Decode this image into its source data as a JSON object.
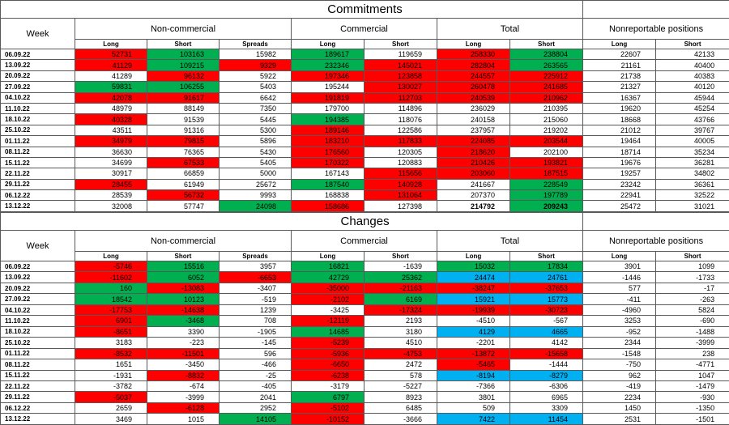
{
  "colors": {
    "red": "#ff0000",
    "green": "#00b050",
    "blue": "#00b0f0",
    "none": "#ffffff"
  },
  "header": {
    "week": "Week",
    "groups": [
      {
        "label": "Non-commercial"
      },
      {
        "label": "Commercial"
      },
      {
        "label": "Total"
      },
      {
        "label": "Nonreportable positions"
      }
    ],
    "sub": [
      "Long",
      "Short",
      "Spreads",
      "Long",
      "Short",
      "Long",
      "Short",
      "Long",
      "Short"
    ]
  },
  "commitments": {
    "title": "Commitments",
    "rows": [
      {
        "week": "06.09.22",
        "cells": [
          [
            52731,
            "red"
          ],
          [
            103163,
            "green"
          ],
          [
            15982,
            "none"
          ],
          [
            189617,
            "green"
          ],
          [
            119659,
            "none"
          ],
          [
            258330,
            "red"
          ],
          [
            238804,
            "green"
          ],
          [
            22607,
            "none"
          ],
          [
            42133,
            "none"
          ]
        ]
      },
      {
        "week": "13.09.22",
        "cells": [
          [
            41129,
            "red"
          ],
          [
            109215,
            "green"
          ],
          [
            9329,
            "red"
          ],
          [
            232346,
            "green"
          ],
          [
            145021,
            "red"
          ],
          [
            282804,
            "red"
          ],
          [
            263565,
            "green"
          ],
          [
            21161,
            "none"
          ],
          [
            40400,
            "none"
          ]
        ]
      },
      {
        "week": "20.09.22",
        "cells": [
          [
            41289,
            "none"
          ],
          [
            96132,
            "red"
          ],
          [
            5922,
            "none"
          ],
          [
            197346,
            "red"
          ],
          [
            123858,
            "red"
          ],
          [
            244557,
            "red"
          ],
          [
            225912,
            "red"
          ],
          [
            21738,
            "none"
          ],
          [
            40383,
            "none"
          ]
        ]
      },
      {
        "week": "27.09.22",
        "cells": [
          [
            59831,
            "green"
          ],
          [
            106255,
            "green"
          ],
          [
            5403,
            "none"
          ],
          [
            195244,
            "none"
          ],
          [
            130027,
            "red"
          ],
          [
            260478,
            "red"
          ],
          [
            241685,
            "red"
          ],
          [
            21327,
            "none"
          ],
          [
            40120,
            "none"
          ]
        ]
      },
      {
        "week": "04.10.22",
        "cells": [
          [
            42078,
            "red"
          ],
          [
            91617,
            "red"
          ],
          [
            6642,
            "none"
          ],
          [
            191819,
            "red"
          ],
          [
            112703,
            "red"
          ],
          [
            240539,
            "red"
          ],
          [
            210962,
            "red"
          ],
          [
            16367,
            "none"
          ],
          [
            45944,
            "none"
          ]
        ]
      },
      {
        "week": "11.10.22",
        "cells": [
          [
            48979,
            "none"
          ],
          [
            88149,
            "none"
          ],
          [
            7350,
            "none"
          ],
          [
            179700,
            "none"
          ],
          [
            114896,
            "none"
          ],
          [
            236029,
            "none"
          ],
          [
            210395,
            "none"
          ],
          [
            19620,
            "none"
          ],
          [
            45254,
            "none"
          ]
        ]
      },
      {
        "week": "18.10.22",
        "cells": [
          [
            40328,
            "red"
          ],
          [
            91539,
            "none"
          ],
          [
            5445,
            "none"
          ],
          [
            194385,
            "green"
          ],
          [
            118076,
            "none"
          ],
          [
            240158,
            "none"
          ],
          [
            215060,
            "none"
          ],
          [
            18668,
            "none"
          ],
          [
            43766,
            "none"
          ]
        ]
      },
      {
        "week": "25.10.22",
        "cells": [
          [
            43511,
            "none"
          ],
          [
            91316,
            "none"
          ],
          [
            5300,
            "none"
          ],
          [
            189146,
            "red"
          ],
          [
            122586,
            "none"
          ],
          [
            237957,
            "none"
          ],
          [
            219202,
            "none"
          ],
          [
            21012,
            "none"
          ],
          [
            39767,
            "none"
          ]
        ]
      },
      {
        "week": "01.11.22",
        "cells": [
          [
            34979,
            "red"
          ],
          [
            79815,
            "red"
          ],
          [
            5896,
            "none"
          ],
          [
            183210,
            "red"
          ],
          [
            117833,
            "red"
          ],
          [
            224085,
            "red"
          ],
          [
            203544,
            "red"
          ],
          [
            19464,
            "none"
          ],
          [
            40005,
            "none"
          ]
        ]
      },
      {
        "week": "08.11.22",
        "cells": [
          [
            36630,
            "none"
          ],
          [
            76365,
            "none"
          ],
          [
            5430,
            "none"
          ],
          [
            176560,
            "red"
          ],
          [
            120305,
            "none"
          ],
          [
            218620,
            "red"
          ],
          [
            202100,
            "none"
          ],
          [
            18714,
            "none"
          ],
          [
            35234,
            "none"
          ]
        ]
      },
      {
        "week": "15.11.22",
        "cells": [
          [
            34699,
            "none"
          ],
          [
            67533,
            "red"
          ],
          [
            5405,
            "none"
          ],
          [
            170322,
            "red"
          ],
          [
            120883,
            "none"
          ],
          [
            210426,
            "red"
          ],
          [
            193821,
            "red"
          ],
          [
            19676,
            "none"
          ],
          [
            36281,
            "none"
          ]
        ]
      },
      {
        "week": "22.11.22",
        "cells": [
          [
            30917,
            "none"
          ],
          [
            66859,
            "none"
          ],
          [
            5000,
            "none"
          ],
          [
            167143,
            "none"
          ],
          [
            115656,
            "red"
          ],
          [
            203060,
            "red"
          ],
          [
            187515,
            "red"
          ],
          [
            19257,
            "none"
          ],
          [
            34802,
            "none"
          ]
        ]
      },
      {
        "week": "29.11.22",
        "cells": [
          [
            28455,
            "red"
          ],
          [
            61949,
            "none"
          ],
          [
            25672,
            "none"
          ],
          [
            187540,
            "green"
          ],
          [
            140928,
            "red"
          ],
          [
            241667,
            "none"
          ],
          [
            228549,
            "green"
          ],
          [
            23242,
            "none"
          ],
          [
            36361,
            "none"
          ]
        ]
      },
      {
        "week": "06.12.22",
        "cells": [
          [
            28539,
            "none"
          ],
          [
            56732,
            "red"
          ],
          [
            9993,
            "none"
          ],
          [
            168838,
            "none"
          ],
          [
            131064,
            "red"
          ],
          [
            207370,
            "none"
          ],
          [
            197789,
            "green"
          ],
          [
            22941,
            "none"
          ],
          [
            32522,
            "none"
          ]
        ]
      },
      {
        "week": "13.12.22",
        "cells": [
          [
            32008,
            "none"
          ],
          [
            57747,
            "none"
          ],
          [
            24098,
            "green"
          ],
          [
            158686,
            "red"
          ],
          [
            127398,
            "none"
          ],
          [
            214792,
            "none",
            true
          ],
          [
            209243,
            "green",
            true
          ],
          [
            25472,
            "none"
          ],
          [
            31021,
            "none"
          ]
        ]
      }
    ]
  },
  "changes": {
    "title": "Changes",
    "rows": [
      {
        "week": "06.09.22",
        "cells": [
          [
            -5746,
            "red"
          ],
          [
            15516,
            "green"
          ],
          [
            3957,
            "none"
          ],
          [
            16821,
            "green"
          ],
          [
            -1639,
            "none"
          ],
          [
            15032,
            "green"
          ],
          [
            17834,
            "green"
          ],
          [
            3901,
            "none"
          ],
          [
            1099,
            "none"
          ]
        ]
      },
      {
        "week": "13.09.22",
        "cells": [
          [
            -11602,
            "red"
          ],
          [
            6052,
            "green"
          ],
          [
            -6653,
            "red"
          ],
          [
            42729,
            "green"
          ],
          [
            25362,
            "green"
          ],
          [
            24474,
            "blue"
          ],
          [
            24761,
            "blue"
          ],
          [
            -1446,
            "none"
          ],
          [
            -1733,
            "none"
          ]
        ]
      },
      {
        "week": "20.09.22",
        "cells": [
          [
            160,
            "green"
          ],
          [
            -13083,
            "red"
          ],
          [
            -3407,
            "none"
          ],
          [
            -35000,
            "red"
          ],
          [
            -21163,
            "red"
          ],
          [
            -38247,
            "red"
          ],
          [
            -37653,
            "red"
          ],
          [
            577,
            "none"
          ],
          [
            -17,
            "none"
          ]
        ]
      },
      {
        "week": "27.09.22",
        "cells": [
          [
            18542,
            "green"
          ],
          [
            10123,
            "green"
          ],
          [
            -519,
            "none"
          ],
          [
            -2102,
            "red"
          ],
          [
            6169,
            "green"
          ],
          [
            15921,
            "blue"
          ],
          [
            15773,
            "blue"
          ],
          [
            -411,
            "none"
          ],
          [
            -263,
            "none"
          ]
        ]
      },
      {
        "week": "04.10.22",
        "cells": [
          [
            -17753,
            "red"
          ],
          [
            -14638,
            "red"
          ],
          [
            1239,
            "none"
          ],
          [
            -3425,
            "none"
          ],
          [
            -17324,
            "red"
          ],
          [
            -19939,
            "red"
          ],
          [
            -30723,
            "red"
          ],
          [
            -4960,
            "none"
          ],
          [
            5824,
            "none"
          ]
        ]
      },
      {
        "week": "11.10.22",
        "cells": [
          [
            6901,
            "red"
          ],
          [
            -3468,
            "green"
          ],
          [
            708,
            "none"
          ],
          [
            -12119,
            "red"
          ],
          [
            2193,
            "none"
          ],
          [
            -4510,
            "none"
          ],
          [
            -567,
            "none"
          ],
          [
            3253,
            "none"
          ],
          [
            -690,
            "none"
          ]
        ]
      },
      {
        "week": "18.10.22",
        "cells": [
          [
            -8651,
            "red"
          ],
          [
            3390,
            "none"
          ],
          [
            -1905,
            "none"
          ],
          [
            14685,
            "green"
          ],
          [
            3180,
            "none"
          ],
          [
            4129,
            "blue"
          ],
          [
            4665,
            "blue"
          ],
          [
            -952,
            "none"
          ],
          [
            -1488,
            "none"
          ]
        ]
      },
      {
        "week": "25.10.22",
        "cells": [
          [
            3183,
            "none"
          ],
          [
            -223,
            "none"
          ],
          [
            -145,
            "none"
          ],
          [
            -5239,
            "red"
          ],
          [
            4510,
            "none"
          ],
          [
            -2201,
            "none"
          ],
          [
            4142,
            "none"
          ],
          [
            2344,
            "none"
          ],
          [
            -3999,
            "none"
          ]
        ]
      },
      {
        "week": "01.11.22",
        "cells": [
          [
            -8532,
            "red"
          ],
          [
            -11501,
            "red"
          ],
          [
            596,
            "none"
          ],
          [
            -5936,
            "red"
          ],
          [
            -4753,
            "red"
          ],
          [
            -13872,
            "red"
          ],
          [
            -15658,
            "red"
          ],
          [
            -1548,
            "none"
          ],
          [
            238,
            "none"
          ]
        ]
      },
      {
        "week": "08.11.22",
        "cells": [
          [
            1651,
            "none"
          ],
          [
            -3450,
            "none"
          ],
          [
            -466,
            "none"
          ],
          [
            -6650,
            "red"
          ],
          [
            2472,
            "none"
          ],
          [
            -5465,
            "red"
          ],
          [
            -1444,
            "none"
          ],
          [
            -750,
            "none"
          ],
          [
            -4771,
            "none"
          ]
        ]
      },
      {
        "week": "15.11.22",
        "cells": [
          [
            -1931,
            "none"
          ],
          [
            -8832,
            "red"
          ],
          [
            -25,
            "none"
          ],
          [
            -6238,
            "red"
          ],
          [
            578,
            "none"
          ],
          [
            -8194,
            "blue"
          ],
          [
            -8279,
            "blue"
          ],
          [
            962,
            "none"
          ],
          [
            1047,
            "none"
          ]
        ]
      },
      {
        "week": "22.11.22",
        "cells": [
          [
            -3782,
            "none"
          ],
          [
            -674,
            "none"
          ],
          [
            -405,
            "none"
          ],
          [
            -3179,
            "none"
          ],
          [
            -5227,
            "none"
          ],
          [
            -7366,
            "none"
          ],
          [
            -6306,
            "none"
          ],
          [
            -419,
            "none"
          ],
          [
            -1479,
            "none"
          ]
        ]
      },
      {
        "week": "29.11.22",
        "cells": [
          [
            -5037,
            "red"
          ],
          [
            -3999,
            "none"
          ],
          [
            2041,
            "none"
          ],
          [
            6797,
            "green"
          ],
          [
            8923,
            "none"
          ],
          [
            3801,
            "none"
          ],
          [
            6965,
            "none"
          ],
          [
            2234,
            "none"
          ],
          [
            -930,
            "none"
          ]
        ]
      },
      {
        "week": "06.12.22",
        "cells": [
          [
            2659,
            "none"
          ],
          [
            -6128,
            "red"
          ],
          [
            2952,
            "none"
          ],
          [
            -5102,
            "red"
          ],
          [
            6485,
            "none"
          ],
          [
            509,
            "none"
          ],
          [
            3309,
            "none"
          ],
          [
            1450,
            "none"
          ],
          [
            -1350,
            "none"
          ]
        ]
      },
      {
        "week": "13.12.22",
        "cells": [
          [
            3469,
            "none"
          ],
          [
            1015,
            "none"
          ],
          [
            14105,
            "green"
          ],
          [
            -10152,
            "red"
          ],
          [
            -3666,
            "none"
          ],
          [
            7422,
            "blue"
          ],
          [
            11454,
            "blue"
          ],
          [
            2531,
            "none"
          ],
          [
            -1501,
            "none"
          ]
        ]
      }
    ]
  }
}
